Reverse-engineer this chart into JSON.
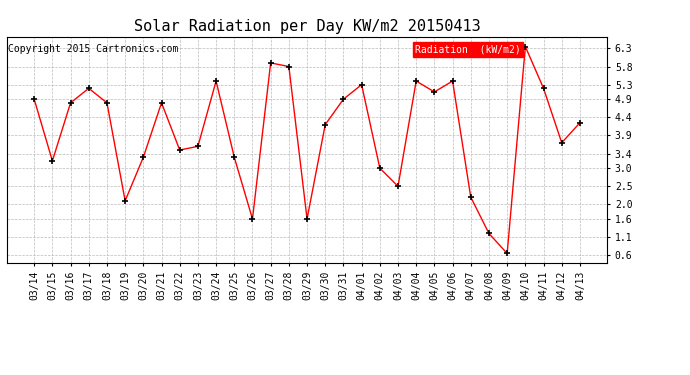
{
  "title": "Solar Radiation per Day KW/m2 20150413",
  "copyright_text": "Copyright 2015 Cartronics.com",
  "legend_label": "Radiation  (kW/m2)",
  "dates": [
    "03/14",
    "03/15",
    "03/16",
    "03/17",
    "03/18",
    "03/19",
    "03/20",
    "03/21",
    "03/22",
    "03/23",
    "03/24",
    "03/25",
    "03/26",
    "03/27",
    "03/28",
    "03/29",
    "03/30",
    "03/31",
    "04/01",
    "04/02",
    "04/03",
    "04/04",
    "04/05",
    "04/06",
    "04/07",
    "04/08",
    "04/09",
    "04/10",
    "04/11",
    "04/12",
    "04/13"
  ],
  "values": [
    4.9,
    3.2,
    4.8,
    5.2,
    4.8,
    2.1,
    3.3,
    4.8,
    3.5,
    3.6,
    5.4,
    3.3,
    1.6,
    5.9,
    5.8,
    1.6,
    4.2,
    4.9,
    5.3,
    3.0,
    2.5,
    5.4,
    5.1,
    5.4,
    2.2,
    1.2,
    0.65,
    6.35,
    5.2,
    3.7,
    4.25
  ],
  "line_color": "red",
  "marker": "+",
  "marker_color": "black",
  "marker_size": 5,
  "marker_edge_width": 1.2,
  "line_width": 1.0,
  "ylim": [
    0.4,
    6.6
  ],
  "yticks": [
    0.6,
    1.1,
    1.6,
    2.0,
    2.5,
    3.0,
    3.4,
    3.9,
    4.4,
    4.9,
    5.3,
    5.8,
    6.3
  ],
  "grid_color": "#bbbbbb",
  "background_color": "white",
  "plot_bg_color": "white",
  "title_fontsize": 11,
  "tick_fontsize": 7,
  "copyright_fontsize": 7,
  "legend_bg_color": "red",
  "legend_text_color": "white",
  "legend_fontsize": 7
}
